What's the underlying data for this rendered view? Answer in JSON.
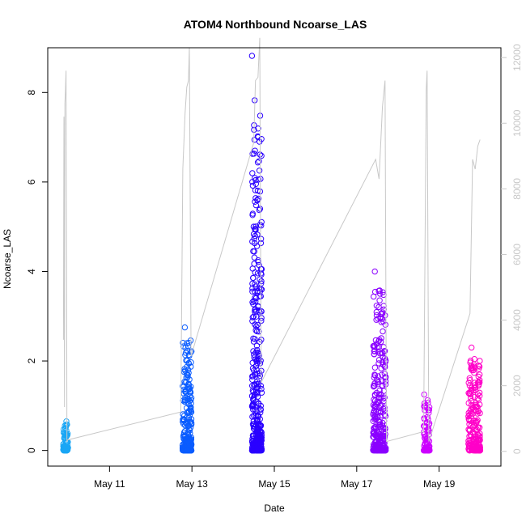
{
  "chart_data": {
    "type": "scatter",
    "title": "ATOM4 Northbound Ncoarse_LAS",
    "xlabel": "Date",
    "ylabel": "Ncoarse_LAS",
    "x_range_days": [
      "2016-05-09T12:00",
      "2016-05-20T12:00"
    ],
    "ylim": [
      -0.35,
      9.0
    ],
    "y_ticks": [
      0,
      2,
      4,
      6,
      8
    ],
    "x_ticks": [
      {
        "date": "2016-05-11",
        "label": "May 11"
      },
      {
        "date": "2016-05-13",
        "label": "May 13"
      },
      {
        "date": "2016-05-15",
        "label": "May 15"
      },
      {
        "date": "2016-05-17",
        "label": "May 17"
      },
      {
        "date": "2016-05-19",
        "label": "May 19"
      }
    ],
    "secondary_axis": {
      "ylim": [
        -450,
        12300
      ],
      "ticks": [
        0,
        2000,
        4000,
        6000,
        8000,
        10000,
        12000
      ],
      "color": "#c8c8c8"
    },
    "flights": [
      {
        "start": "2016-05-09T21:00",
        "end": "2016-05-09T23:50",
        "color": "#1aa6f5",
        "max": 0.65,
        "n": 90
      },
      {
        "start": "2016-05-12T18:30",
        "end": "2016-05-12T23:50",
        "color": "#0a5cff",
        "max": 2.75,
        "n": 260
      },
      {
        "start": "2016-05-14T11:00",
        "end": "2016-05-14T16:40",
        "color": "#2a00ff",
        "max": 8.82,
        "n": 420
      },
      {
        "start": "2016-05-17T09:30",
        "end": "2016-05-17T17:00",
        "color": "#8a00ff",
        "max": 4.0,
        "n": 300
      },
      {
        "start": "2016-05-18T15:00",
        "end": "2016-05-18T18:30",
        "color": "#cc00ff",
        "max": 1.25,
        "n": 90
      },
      {
        "start": "2016-05-19T17:00",
        "end": "2016-05-19T23:55",
        "color": "#ff00c8",
        "max": 2.3,
        "n": 230
      }
    ],
    "altitude_line": {
      "color": "#c8c8c8",
      "points": [
        [
          "2016-05-09T21:10",
          3400
        ],
        [
          "2016-05-09T21:25",
          10200
        ],
        [
          "2016-05-09T21:45",
          1350
        ],
        [
          "2016-05-09T22:00",
          10600
        ],
        [
          "2016-05-09T22:20",
          11000
        ],
        [
          "2016-05-09T22:40",
          11600
        ],
        [
          "2016-05-09T23:00",
          5900
        ],
        [
          "2016-05-09T23:10",
          300
        ],
        [
          "2016-05-09T23:40",
          350
        ],
        [
          "2016-05-12T17:30",
          1200
        ],
        [
          "2016-05-12T18:40",
          8600
        ],
        [
          "2016-05-12T20:00",
          10300
        ],
        [
          "2016-05-12T21:00",
          11100
        ],
        [
          "2016-05-12T22:00",
          11300
        ],
        [
          "2016-05-12T22:30",
          12300
        ],
        [
          "2016-05-12T23:30",
          2900
        ],
        [
          "2016-05-14T12:00",
          9400
        ],
        [
          "2016-05-14T13:00",
          11300
        ],
        [
          "2016-05-14T14:30",
          11400
        ],
        [
          "2016-05-14T15:30",
          12600
        ],
        [
          "2016-05-14T16:20",
          2100
        ],
        [
          "2016-05-17T11:00",
          8900
        ],
        [
          "2016-05-17T13:00",
          8300
        ],
        [
          "2016-05-17T15:00",
          10500
        ],
        [
          "2016-05-17T16:30",
          11300
        ],
        [
          "2016-05-17T17:20",
          300
        ],
        [
          "2016-05-18T15:00",
          600
        ],
        [
          "2016-05-18T16:30",
          11000
        ],
        [
          "2016-05-18T17:00",
          11600
        ],
        [
          "2016-05-18T18:00",
          300
        ],
        [
          "2016-05-19T18:00",
          4200
        ],
        [
          "2016-05-19T19:30",
          8900
        ],
        [
          "2016-05-19T21:00",
          8600
        ],
        [
          "2016-05-19T22:30",
          9300
        ],
        [
          "2016-05-19T23:50",
          9500
        ]
      ]
    },
    "grid": false,
    "legend": "none"
  }
}
